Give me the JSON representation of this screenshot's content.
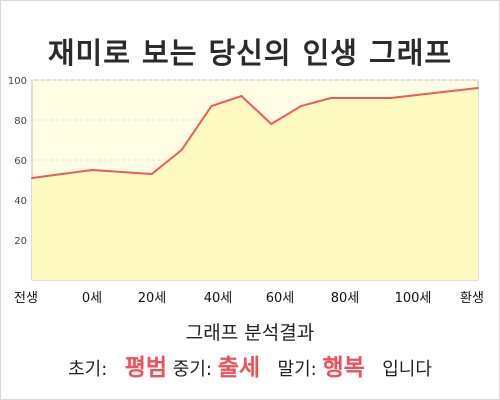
{
  "title": "재미로 보는 당신의 인생 그래프",
  "chart_data": {
    "type": "area",
    "x_labels": [
      "전생",
      "0세",
      "20세",
      "40세",
      "60세",
      "80세",
      "100세",
      "환생"
    ],
    "y_ticks": [
      20,
      40,
      60,
      80,
      100
    ],
    "ylim": [
      0,
      100
    ],
    "grid": true,
    "line_color": "#ee5a5a",
    "fill_color": "#fffac0",
    "bg_color": "#fffde4",
    "points": [
      {
        "x": "전생",
        "y": 51
      },
      {
        "x": "0세",
        "y": 55
      },
      {
        "x": "20세",
        "y": 53
      },
      {
        "x": "30세",
        "y": 65
      },
      {
        "x": "40세",
        "y": 87
      },
      {
        "x": "50세",
        "y": 92
      },
      {
        "x": "60세",
        "y": 78
      },
      {
        "x": "70세",
        "y": 87
      },
      {
        "x": "80세",
        "y": 91
      },
      {
        "x": "100세",
        "y": 91
      },
      {
        "x": "환생",
        "y": 96
      }
    ]
  },
  "result": {
    "heading": "그래프 분석결과",
    "early_label": "초기:",
    "early_value": "평범",
    "mid_label": "중기:",
    "mid_value": "출세",
    "late_label": "말기:",
    "late_value": "행복",
    "suffix": "입니다"
  }
}
